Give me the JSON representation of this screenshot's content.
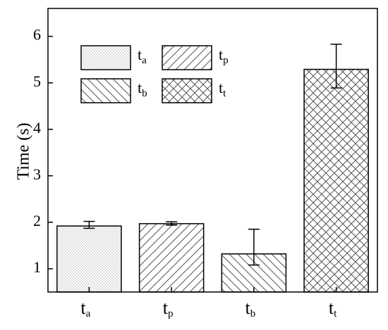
{
  "chart_data": {
    "type": "bar",
    "y_label": "Time (s)",
    "categories": [
      {
        "text": "t",
        "sub": "a"
      },
      {
        "text": "t",
        "sub": "p"
      },
      {
        "text": "t",
        "sub": "b"
      },
      {
        "text": "t",
        "sub": "t"
      }
    ],
    "values": [
      1.92,
      1.97,
      1.32,
      5.29
    ],
    "err_minus": [
      0.05,
      0.03,
      0.24,
      0.4
    ],
    "err_plus": [
      0.1,
      0.04,
      0.53,
      0.54
    ],
    "patterns": [
      "dots",
      "hatch-forward",
      "hatch-back",
      "crosshatch"
    ],
    "color": "#000000",
    "ylim": [
      0.5,
      6.6
    ],
    "yticks": [
      1,
      2,
      3,
      4,
      5,
      6
    ],
    "legend": "upper-left"
  }
}
